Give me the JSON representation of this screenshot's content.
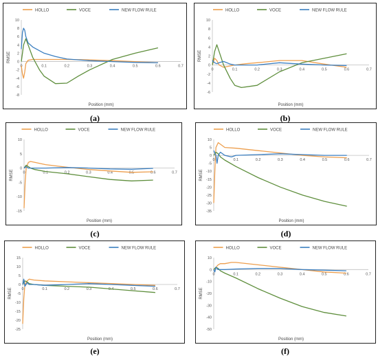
{
  "chart_data": [
    {
      "type": "line",
      "caption": "(a)",
      "xlabel": "Position (mm)",
      "ylabel": "RMSE",
      "xlim": [
        0,
        0.7
      ],
      "ylim": [
        -8,
        10
      ],
      "xticks": [
        "0",
        "0.1",
        "0.2",
        "0.3",
        "0.4",
        "0.5",
        "0.6",
        "0.7"
      ],
      "yticks": [
        "-8",
        "-6",
        "-4",
        "-2",
        "0",
        "2",
        "4",
        "6",
        "8",
        "10"
      ],
      "legend_position": "top",
      "series": [
        {
          "name": "HOLLO",
          "color": "#ED9E4D",
          "x": [
            0,
            0.005,
            0.01,
            0.015,
            0.02,
            0.03,
            0.05,
            0.1,
            0.2,
            0.3,
            0.4,
            0.5,
            0.6
          ],
          "y": [
            -1,
            -3,
            -4,
            -2.5,
            -0.5,
            0.3,
            0.5,
            0.5,
            0.5,
            0.4,
            0.2,
            0.0,
            -0.3
          ]
        },
        {
          "name": "VOCE",
          "color": "#5E8E3C",
          "x": [
            0,
            0.005,
            0.01,
            0.02,
            0.03,
            0.05,
            0.08,
            0.1,
            0.15,
            0.2,
            0.25,
            0.3,
            0.4,
            0.5,
            0.6
          ],
          "y": [
            0,
            2,
            4,
            5.5,
            4,
            1,
            -2,
            -3.5,
            -5.3,
            -5.2,
            -3.5,
            -2,
            0.5,
            2,
            3.3
          ]
        },
        {
          "name": "NEW FLOW RULE",
          "color": "#3A7EC0",
          "x": [
            0,
            0.005,
            0.01,
            0.015,
            0.02,
            0.03,
            0.05,
            0.1,
            0.15,
            0.2,
            0.3,
            0.4,
            0.5,
            0.6
          ],
          "y": [
            3,
            7,
            8,
            7.5,
            6,
            4.5,
            3.5,
            2,
            1.2,
            0.6,
            0.2,
            0.0,
            -0.2,
            -0.3
          ]
        }
      ]
    },
    {
      "type": "line",
      "caption": "(b)",
      "xlabel": "Position (mm)",
      "ylabel": "RMSE",
      "xlim": [
        0,
        0.7
      ],
      "ylim": [
        -6,
        10
      ],
      "xticks": [
        "0",
        "0.1",
        "0.2",
        "0.3",
        "0.4",
        "0.5",
        "0.6",
        "0.7"
      ],
      "yticks": [
        "-6",
        "-4",
        "-2",
        "0",
        "2",
        "4",
        "6",
        "8",
        "10"
      ],
      "legend_position": "top",
      "series": [
        {
          "name": "HOLLO",
          "color": "#ED9E4D",
          "x": [
            0,
            0.01,
            0.02,
            0.03,
            0.05,
            0.1,
            0.15,
            0.2,
            0.3,
            0.4,
            0.5,
            0.6
          ],
          "y": [
            0,
            1.5,
            1,
            0,
            -0.5,
            0,
            0.3,
            0.5,
            1,
            1,
            0.2,
            -0.5
          ]
        },
        {
          "name": "VOCE",
          "color": "#5E8E3C",
          "x": [
            0,
            0.01,
            0.02,
            0.03,
            0.05,
            0.08,
            0.1,
            0.13,
            0.2,
            0.3,
            0.4,
            0.5,
            0.6
          ],
          "y": [
            0,
            3,
            4.5,
            3,
            0,
            -3,
            -4.5,
            -5,
            -4.5,
            -1.5,
            0.5,
            1.5,
            2.5
          ]
        },
        {
          "name": "NEW FLOW RULE",
          "color": "#3A7EC0",
          "x": [
            0,
            0.01,
            0.02,
            0.03,
            0.05,
            0.08,
            0.1,
            0.2,
            0.3,
            0.4,
            0.5,
            0.6
          ],
          "y": [
            1,
            0.5,
            0.3,
            0.5,
            0.8,
            0.2,
            0,
            0,
            0.5,
            0.2,
            0,
            -0.1
          ]
        }
      ]
    },
    {
      "type": "line",
      "caption": "(c)",
      "xlabel": "Position (mm)",
      "ylabel": "RMSE",
      "xlim": [
        0,
        0.7
      ],
      "ylim": [
        -15,
        10
      ],
      "xticks": [
        "0",
        "0.1",
        "0.2",
        "0.3",
        "0.4",
        "0.5",
        "0.6",
        "0.7"
      ],
      "yticks": [
        "-15",
        "-10",
        "-5",
        "0",
        "5",
        "10"
      ],
      "legend_position": "top",
      "series": [
        {
          "name": "HOLLO",
          "color": "#ED9E4D",
          "x": [
            0,
            0.005,
            0.01,
            0.02,
            0.03,
            0.05,
            0.1,
            0.2,
            0.3,
            0.4,
            0.5,
            0.6
          ],
          "y": [
            -14,
            -5,
            0,
            2,
            2.3,
            2,
            1.2,
            0.3,
            -0.5,
            -1,
            -1.5,
            -1.3
          ]
        },
        {
          "name": "VOCE",
          "color": "#5E8E3C",
          "x": [
            0,
            0.01,
            0.02,
            0.03,
            0.05,
            0.1,
            0.2,
            0.3,
            0.4,
            0.5,
            0.6
          ],
          "y": [
            0,
            1,
            0.5,
            0,
            -0.5,
            -1.2,
            -2,
            -3,
            -4,
            -4.5,
            -4.2
          ]
        },
        {
          "name": "NEW FLOW RULE",
          "color": "#3A7EC0",
          "x": [
            0,
            0.01,
            0.02,
            0.03,
            0.05,
            0.1,
            0.2,
            0.3,
            0.4,
            0.5,
            0.6
          ],
          "y": [
            0,
            0.5,
            0,
            0,
            0,
            0,
            0.2,
            0,
            -0.3,
            -0.4,
            -0.1
          ]
        }
      ]
    },
    {
      "type": "line",
      "caption": "(d)",
      "xlabel": "Position (mm)",
      "ylabel": "RMSE",
      "xlim": [
        0,
        0.7
      ],
      "ylim": [
        -35,
        10
      ],
      "xticks": [
        "0",
        "0.1",
        "0.2",
        "0.3",
        "0.4",
        "0.5",
        "0.6",
        "0.7"
      ],
      "yticks": [
        "-35",
        "-30",
        "-25",
        "-20",
        "-15",
        "-10",
        "-5",
        "0",
        "5",
        "10"
      ],
      "legend_position": "top",
      "series": [
        {
          "name": "HOLLO",
          "color": "#ED9E4D",
          "x": [
            0,
            0.005,
            0.01,
            0.02,
            0.03,
            0.05,
            0.1,
            0.2,
            0.3,
            0.4,
            0.5,
            0.6
          ],
          "y": [
            -30,
            -10,
            5,
            8,
            7,
            5,
            4.5,
            3,
            1.5,
            0,
            -1,
            -1.5
          ]
        },
        {
          "name": "VOCE",
          "color": "#5E8E3C",
          "x": [
            0,
            0.01,
            0.02,
            0.03,
            0.05,
            0.1,
            0.2,
            0.3,
            0.4,
            0.5,
            0.6
          ],
          "y": [
            0,
            2,
            1,
            -1,
            -3,
            -7,
            -14,
            -20,
            -25,
            -29,
            -32
          ]
        },
        {
          "name": "NEW FLOW RULE",
          "color": "#3A7EC0",
          "x": [
            0,
            0.01,
            0.015,
            0.02,
            0.03,
            0.05,
            0.08,
            0.1,
            0.2,
            0.3,
            0.4,
            0.5,
            0.6
          ],
          "y": [
            3,
            0,
            -5,
            0,
            2,
            0,
            -1,
            0,
            0.5,
            1,
            0.5,
            0,
            0
          ]
        }
      ]
    },
    {
      "type": "line",
      "caption": "(e)",
      "xlabel": "Position (mm)",
      "ylabel": "RMSE",
      "xlim": [
        0,
        0.7
      ],
      "ylim": [
        -25,
        15
      ],
      "xticks": [
        "0",
        "0.1",
        "0.2",
        "0.3",
        "0.4",
        "0.5",
        "0.6",
        "0.7"
      ],
      "yticks": [
        "-25",
        "-20",
        "-15",
        "-10",
        "-5",
        "0",
        "5",
        "10",
        "15"
      ],
      "legend_position": "top",
      "series": [
        {
          "name": "HOLLO",
          "color": "#ED9E4D",
          "x": [
            0,
            0.005,
            0.01,
            0.02,
            0.03,
            0.05,
            0.1,
            0.2,
            0.3,
            0.4,
            0.5,
            0.6
          ],
          "y": [
            -22,
            -8,
            0,
            2,
            3,
            2.5,
            2,
            1.5,
            1,
            0.5,
            0,
            -0.5
          ]
        },
        {
          "name": "VOCE",
          "color": "#5E8E3C",
          "x": [
            0,
            0.01,
            0.02,
            0.03,
            0.05,
            0.1,
            0.2,
            0.3,
            0.4,
            0.5,
            0.6
          ],
          "y": [
            0,
            2,
            1.5,
            0.5,
            0,
            -0.5,
            -1,
            -1.5,
            -2.5,
            -3.5,
            -4.5
          ]
        },
        {
          "name": "NEW FLOW RULE",
          "color": "#3A7EC0",
          "x": [
            0,
            0.005,
            0.01,
            0.02,
            0.03,
            0.05,
            0.1,
            0.2,
            0.3,
            0.4,
            0.5,
            0.6
          ],
          "y": [
            0,
            3,
            -1,
            1,
            0,
            0,
            -0.5,
            0,
            0.5,
            0,
            -0.5,
            -1
          ]
        }
      ]
    },
    {
      "type": "line",
      "caption": "(f)",
      "xlabel": "Position (mm)",
      "ylabel": "RMSE",
      "xlim": [
        0,
        0.7
      ],
      "ylim": [
        -50,
        10
      ],
      "xticks": [
        "0",
        "0.1",
        "0.2",
        "0.3",
        "0.4",
        "0.5",
        "0.6",
        "0.7"
      ],
      "yticks": [
        "-50",
        "-40",
        "-30",
        "-20",
        "-10",
        "0",
        "10"
      ],
      "legend_position": "top",
      "series": [
        {
          "name": "HOLLO",
          "color": "#ED9E4D",
          "x": [
            0,
            0.01,
            0.02,
            0.03,
            0.05,
            0.08,
            0.1,
            0.2,
            0.3,
            0.4,
            0.5,
            0.6
          ],
          "y": [
            0,
            2,
            4,
            5,
            5,
            6,
            6,
            4,
            2,
            0,
            -2,
            -3
          ]
        },
        {
          "name": "VOCE",
          "color": "#5E8E3C",
          "x": [
            0,
            0.01,
            0.02,
            0.03,
            0.05,
            0.1,
            0.2,
            0.3,
            0.4,
            0.5,
            0.6
          ],
          "y": [
            0,
            2,
            1,
            -1,
            -3,
            -7,
            -16,
            -24,
            -31,
            -36,
            -39
          ]
        },
        {
          "name": "NEW FLOW RULE",
          "color": "#3A7EC0",
          "x": [
            0,
            0.005,
            0.01,
            0.02,
            0.03,
            0.05,
            0.1,
            0.2,
            0.3,
            0.4,
            0.5,
            0.6
          ],
          "y": [
            0,
            -2,
            2,
            0,
            0,
            0,
            0.5,
            1,
            1,
            0,
            -0.5,
            -1
          ]
        }
      ]
    }
  ]
}
